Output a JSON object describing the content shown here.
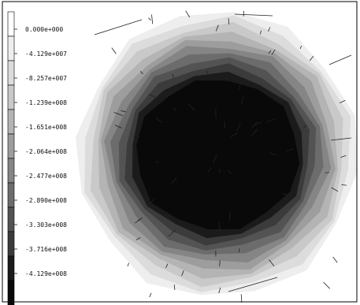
{
  "chart_data": {
    "type": "heatmap",
    "title": "",
    "colorbar": {
      "placement": "left",
      "labels": [
        "0.000e+000",
        "-4.129e+007",
        "-8.257e+007",
        "-1.239e+008",
        "-1.651e+008",
        "-2.064e+008",
        "-2.477e+008",
        "-2.890e+008",
        "-3.303e+008",
        "-3.716e+008",
        "-4.129e+008"
      ],
      "colors": [
        "#ffffff",
        "#eeeeee",
        "#dcdcdc",
        "#c9c9c9",
        "#b4b4b4",
        "#9d9d9d",
        "#858585",
        "#6c6c6c",
        "#535353",
        "#3b3b3b",
        "#1b1b1b",
        "#090909"
      ]
    },
    "contour_levels": 11,
    "center_value": -412900000.0,
    "boundary_value": 0
  }
}
